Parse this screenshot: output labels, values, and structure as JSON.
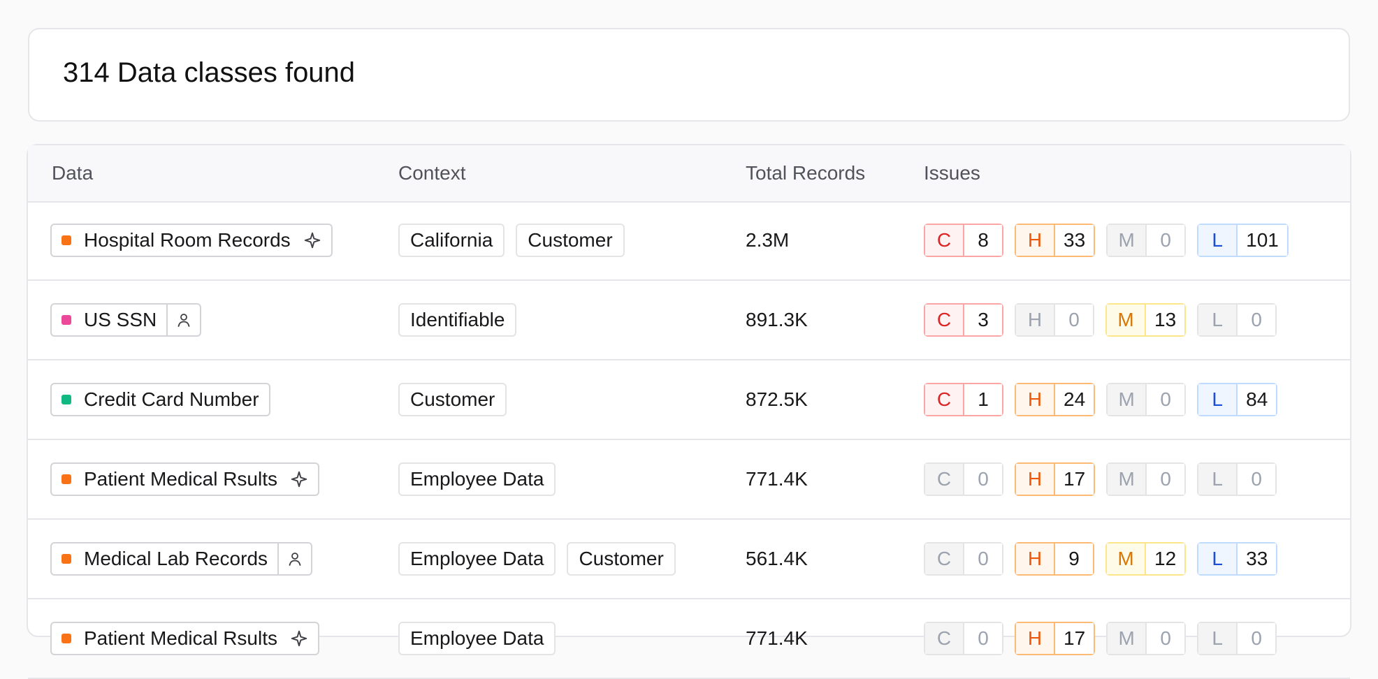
{
  "header": {
    "title": "314 Data classes found"
  },
  "columns": {
    "data": "Data",
    "context": "Context",
    "records": "Total Records",
    "issues": "Issues"
  },
  "colors": {
    "orange": "#f97316",
    "pink": "#ec4899",
    "green": "#10b981"
  },
  "rows": [
    {
      "name": "Hospital Room Records",
      "dot_color": "#f97316",
      "icon": "sparkle-icon",
      "contexts": [
        "California",
        "Customer"
      ],
      "records": "2.3M",
      "issues": [
        {
          "letter": "C",
          "count": "8",
          "active": true
        },
        {
          "letter": "H",
          "count": "33",
          "active": true
        },
        {
          "letter": "M",
          "count": "0",
          "active": false
        },
        {
          "letter": "L",
          "count": "101",
          "active": true
        }
      ]
    },
    {
      "name": "US SSN",
      "dot_color": "#ec4899",
      "icon": "person-icon",
      "contexts": [
        "Identifiable"
      ],
      "records": "891.3K",
      "issues": [
        {
          "letter": "C",
          "count": "3",
          "active": true
        },
        {
          "letter": "H",
          "count": "0",
          "active": false
        },
        {
          "letter": "M",
          "count": "13",
          "active": true
        },
        {
          "letter": "L",
          "count": "0",
          "active": false
        }
      ]
    },
    {
      "name": "Credit Card Number",
      "dot_color": "#10b981",
      "icon": "",
      "contexts": [
        "Customer"
      ],
      "records": "872.5K",
      "issues": [
        {
          "letter": "C",
          "count": "1",
          "active": true
        },
        {
          "letter": "H",
          "count": "24",
          "active": true
        },
        {
          "letter": "M",
          "count": "0",
          "active": false
        },
        {
          "letter": "L",
          "count": "84",
          "active": true
        }
      ]
    },
    {
      "name": "Patient Medical Rsults",
      "dot_color": "#f97316",
      "icon": "sparkle-icon",
      "contexts": [
        "Employee Data"
      ],
      "records": "771.4K",
      "issues": [
        {
          "letter": "C",
          "count": "0",
          "active": false
        },
        {
          "letter": "H",
          "count": "17",
          "active": true
        },
        {
          "letter": "M",
          "count": "0",
          "active": false
        },
        {
          "letter": "L",
          "count": "0",
          "active": false
        }
      ]
    },
    {
      "name": "Medical Lab Records",
      "dot_color": "#f97316",
      "icon": "person-icon",
      "contexts": [
        "Employee Data",
        "Customer"
      ],
      "records": "561.4K",
      "issues": [
        {
          "letter": "C",
          "count": "0",
          "active": false
        },
        {
          "letter": "H",
          "count": "9",
          "active": true
        },
        {
          "letter": "M",
          "count": "12",
          "active": true
        },
        {
          "letter": "L",
          "count": "33",
          "active": true
        }
      ]
    },
    {
      "name": "Patient Medical Rsults",
      "dot_color": "#f97316",
      "icon": "sparkle-icon",
      "contexts": [
        "Employee Data"
      ],
      "records": "771.4K",
      "issues": [
        {
          "letter": "C",
          "count": "0",
          "active": false
        },
        {
          "letter": "H",
          "count": "17",
          "active": true
        },
        {
          "letter": "M",
          "count": "0",
          "active": false
        },
        {
          "letter": "L",
          "count": "0",
          "active": false
        }
      ]
    }
  ]
}
